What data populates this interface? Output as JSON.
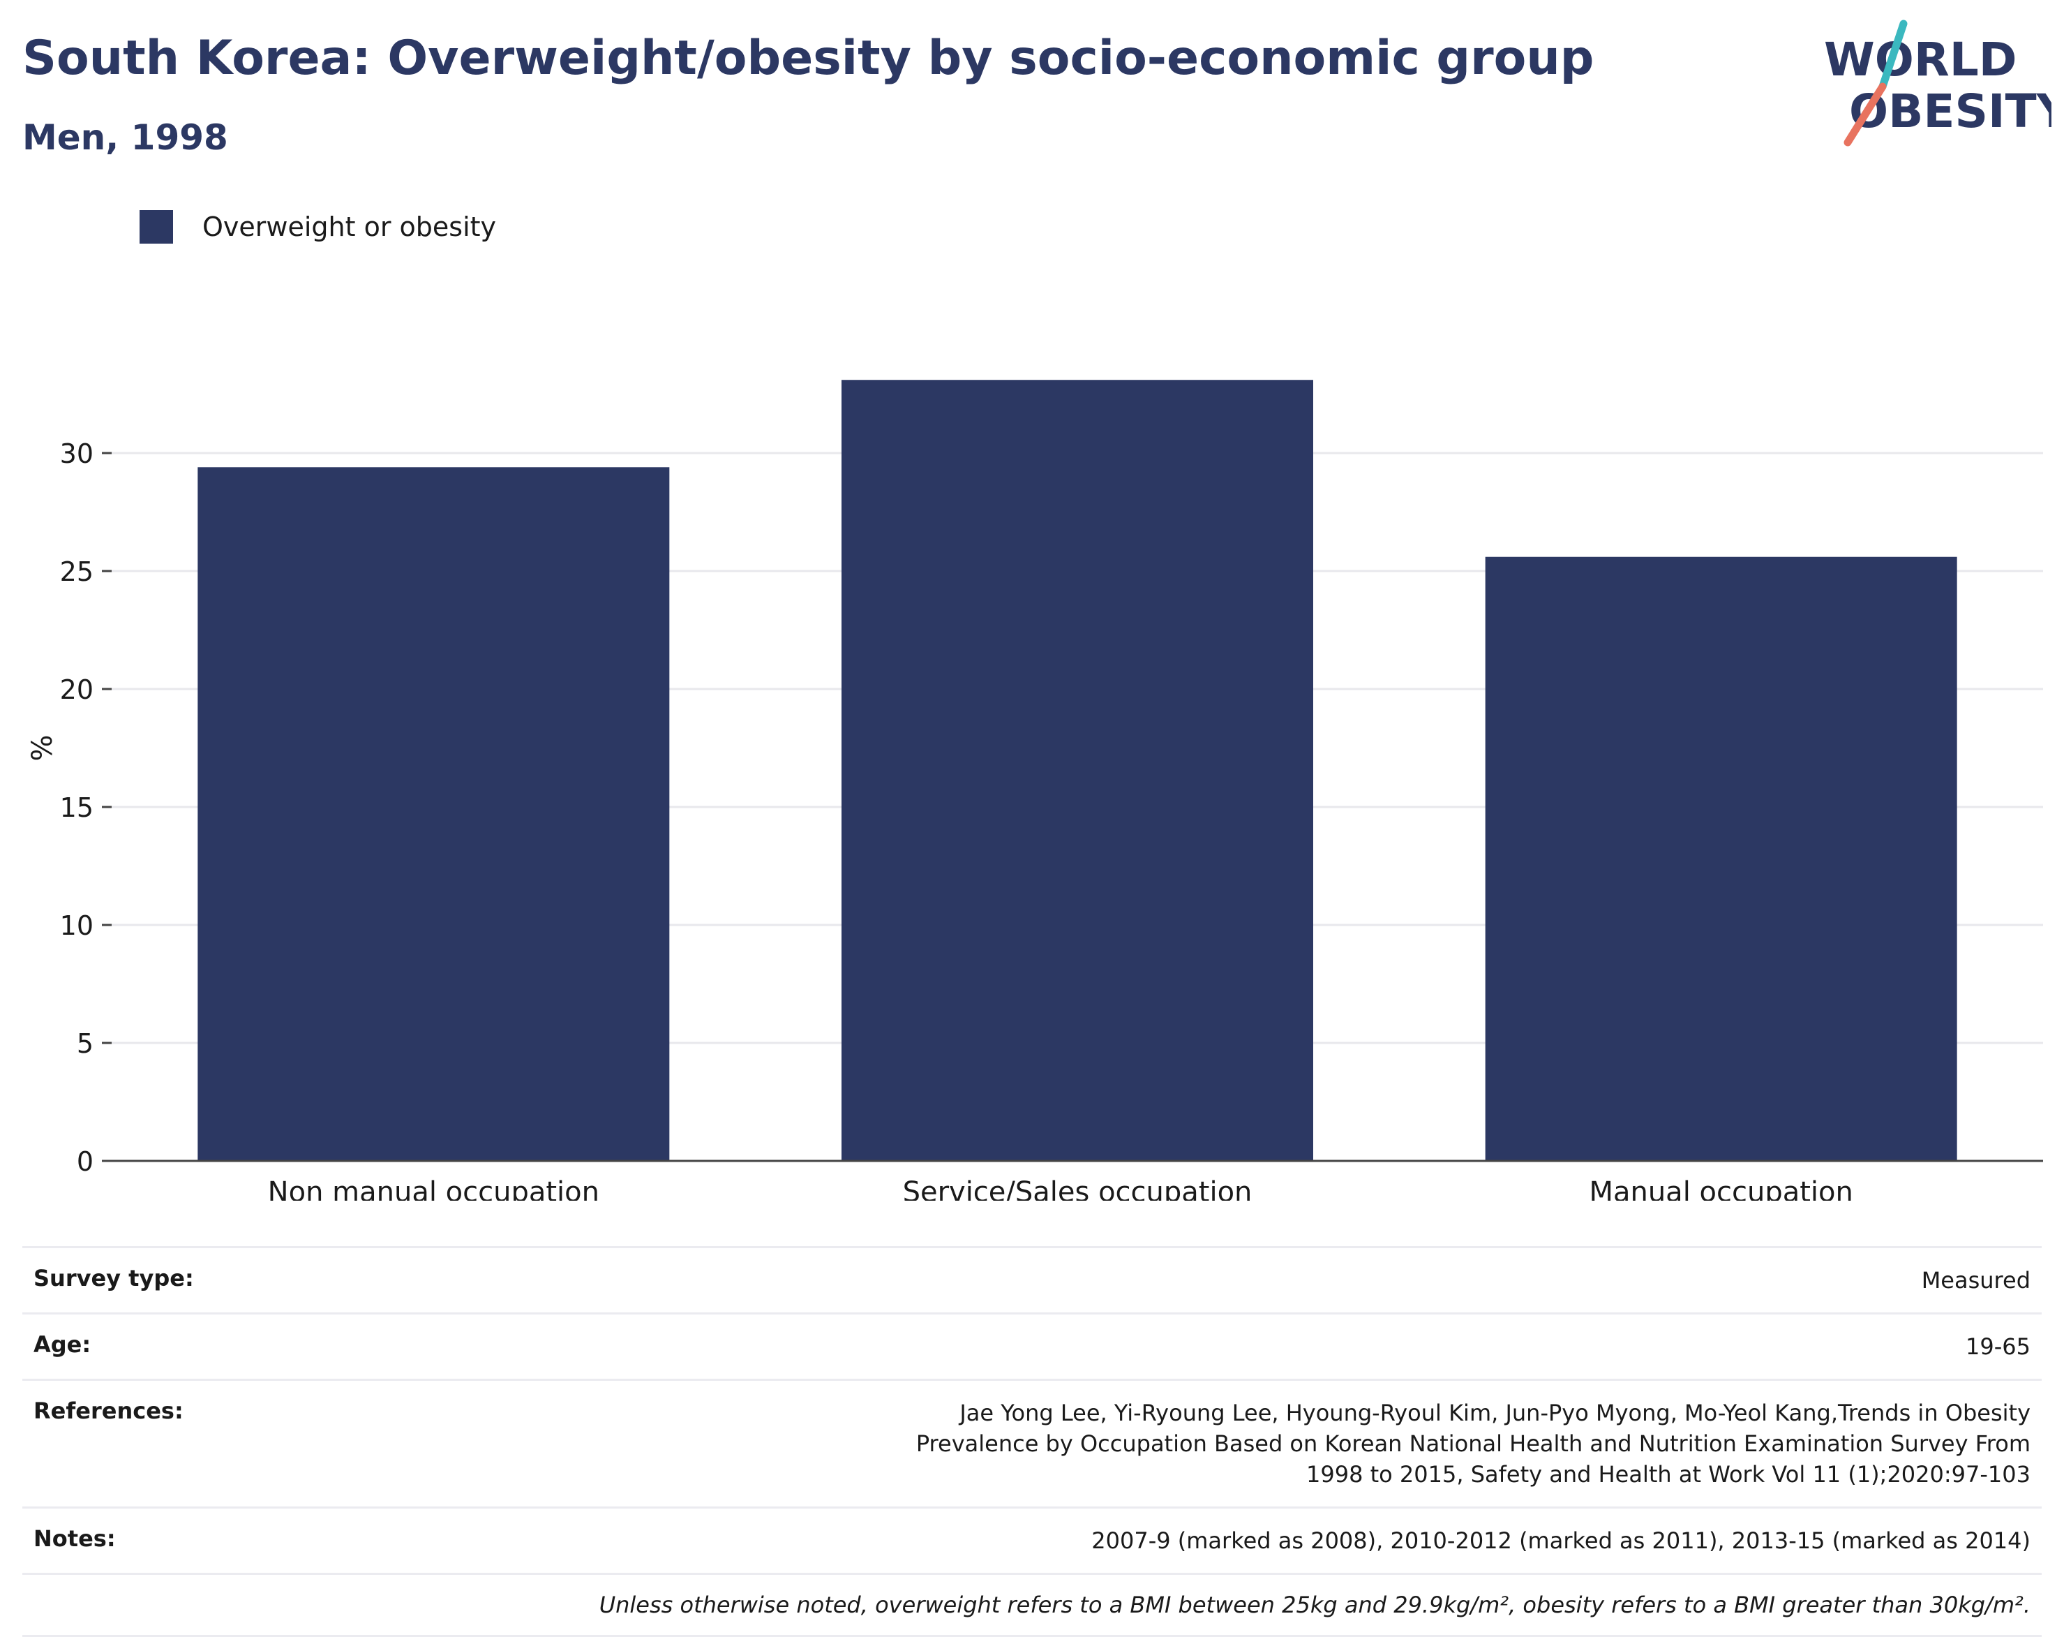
{
  "header": {
    "title": "South Korea: Overweight/obesity by socio-economic group",
    "subtitle": "Men, 1998"
  },
  "logo": {
    "line1": "WORLD",
    "line2": "OBESITY",
    "accent_teal": "#3bb8bf",
    "accent_coral": "#e8735f",
    "text_color": "#2c3863"
  },
  "legend": {
    "entries": [
      {
        "label": "Overweight or obesity",
        "color": "#2c3863"
      }
    ]
  },
  "chart_data": {
    "type": "bar",
    "categories": [
      "Non manual occupation",
      "Service/Sales occupation",
      "Manual occupation"
    ],
    "series": [
      {
        "name": "Overweight or obesity",
        "values": [
          29.4,
          33.1,
          25.6
        ],
        "color": "#2c3863"
      }
    ],
    "title": "",
    "xlabel": "",
    "ylabel": "%",
    "ylim": [
      0,
      35
    ],
    "yticks": [
      0,
      5,
      10,
      15,
      20,
      25,
      30
    ],
    "grid": true,
    "legend_position": "top-left"
  },
  "info": {
    "rows": [
      {
        "key": "Survey type:",
        "value": "Measured"
      },
      {
        "key": "Age:",
        "value": "19-65"
      },
      {
        "key": "References:",
        "value": "Jae Yong Lee, Yi-Ryoung Lee, Hyoung-Ryoul Kim, Jun-Pyo Myong, Mo-Yeol Kang,Trends in Obesity Prevalence by Occupation Based on Korean National Health and Nutrition Examination Survey From 1998 to 2015, Safety and Health at Work Vol 11 (1);2020:97-103"
      },
      {
        "key": "Notes:",
        "value": "2007-9 (marked as 2008), 2010-2012 (marked as 2011), 2013-15 (marked as 2014)"
      }
    ],
    "footnote": "Unless otherwise noted, overweight refers to a BMI between 25kg and 29.9kg/m², obesity refers to a BMI greater than 30kg/m²."
  }
}
